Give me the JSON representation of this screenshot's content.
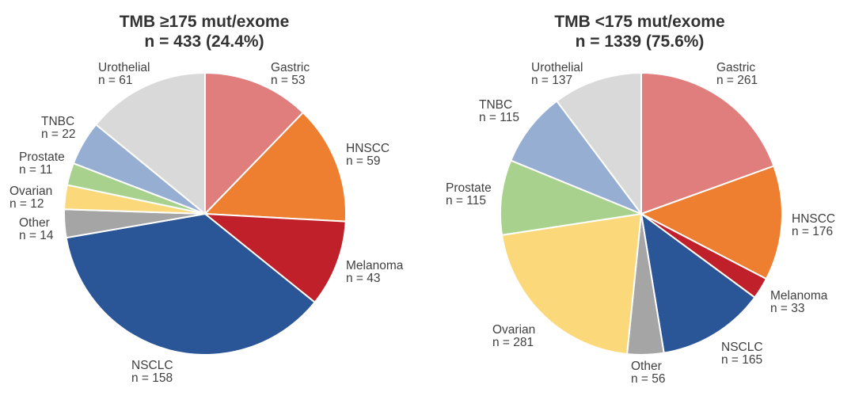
{
  "chart_data": [
    {
      "type": "pie",
      "title": "TMB ≥175 mut/exome",
      "subtitle": "n = 433 (24.4%)",
      "slices": [
        {
          "label": "Gastric",
          "n_text": "n = 53",
          "value": 53,
          "color": "#E07E7E"
        },
        {
          "label": "HNSCC",
          "n_text": "n = 59",
          "value": 59,
          "color": "#EE7E30"
        },
        {
          "label": "Melanoma",
          "n_text": "n = 43",
          "value": 43,
          "color": "#C0202A"
        },
        {
          "label": "NSCLC",
          "n_text": "n = 158",
          "value": 158,
          "color": "#2A5597"
        },
        {
          "label": "Other",
          "n_text": "n = 14",
          "value": 14,
          "color": "#A5A5A5"
        },
        {
          "label": "Ovarian",
          "n_text": "n = 12",
          "value": 12,
          "color": "#FBD97B"
        },
        {
          "label": "Prostate",
          "n_text": "n = 11",
          "value": 11,
          "color": "#A7D18C"
        },
        {
          "label": "TNBC",
          "n_text": "n = 22",
          "value": 22,
          "color": "#96AED1"
        },
        {
          "label": "Urothelial",
          "n_text": "n = 61",
          "value": 61,
          "color": "#D9D9D9"
        }
      ]
    },
    {
      "type": "pie",
      "title": "TMB <175 mut/exome",
      "subtitle": "n = 1339 (75.6%)",
      "slices": [
        {
          "label": "Gastric",
          "n_text": "n = 261",
          "value": 261,
          "color": "#E07E7E"
        },
        {
          "label": "HNSCC",
          "n_text": "n = 176",
          "value": 176,
          "color": "#EE7E30"
        },
        {
          "label": "Melanoma",
          "n_text": "n = 33",
          "value": 33,
          "color": "#C0202A"
        },
        {
          "label": "NSCLC",
          "n_text": "n = 165",
          "value": 165,
          "color": "#2A5597"
        },
        {
          "label": "Other",
          "n_text": "n = 56",
          "value": 56,
          "color": "#A5A5A5"
        },
        {
          "label": "Ovarian",
          "n_text": "n = 281",
          "value": 281,
          "color": "#FBD97B"
        },
        {
          "label": "Prostate",
          "n_text": "n = 115",
          "value": 115,
          "color": "#A7D18C"
        },
        {
          "label": "TNBC",
          "n_text": "n = 115",
          "value": 115,
          "color": "#96AED1"
        },
        {
          "label": "Urothelial",
          "n_text": "n = 137",
          "value": 137,
          "color": "#D9D9D9"
        }
      ]
    }
  ]
}
